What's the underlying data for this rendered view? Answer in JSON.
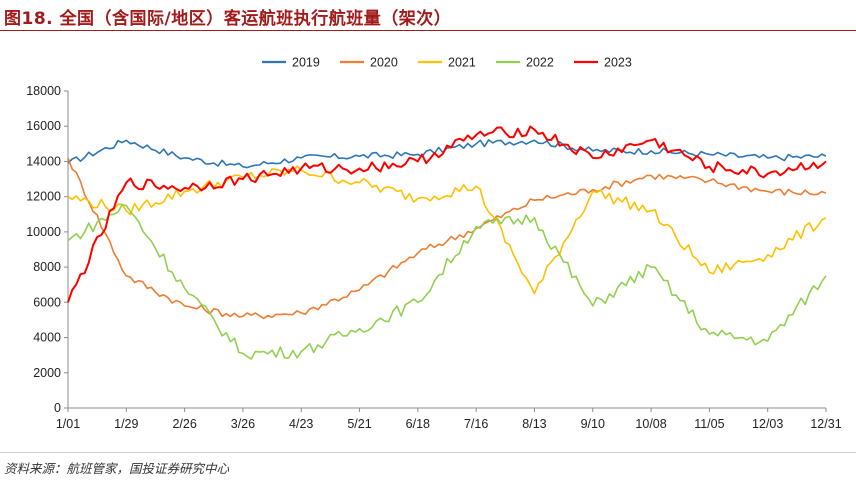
{
  "figure": {
    "title": "图18. 全国（含国际/地区）客运航班执行航班量（架次）",
    "source": "资料来源：航班管家，国投证券研究中心"
  },
  "chart_data": {
    "type": "line",
    "title": "全国（含国际/地区）客运航班执行航班量（架次）",
    "xlabel": "",
    "ylabel": "",
    "x_unit": "day of year",
    "x": [
      1,
      29,
      57,
      85,
      113,
      141,
      169,
      197,
      225,
      253,
      281,
      309,
      337,
      365
    ],
    "x_ticks": [
      "1/01",
      "1/29",
      "2/26",
      "3/26",
      "4/23",
      "5/21",
      "6/18",
      "7/16",
      "8/13",
      "9/10",
      "10/08",
      "11/05",
      "12/03",
      "12/31"
    ],
    "ylim": [
      0,
      18000
    ],
    "y_ticks": [
      0,
      2000,
      4000,
      6000,
      8000,
      10000,
      12000,
      14000,
      16000,
      18000
    ],
    "y_tick_labels": [
      "0",
      "2000",
      "4000",
      "6000",
      "8000",
      "10000",
      "12000",
      "14000",
      "16000",
      "18000"
    ],
    "legend_position": "top-center",
    "series": [
      {
        "name": "2019",
        "color": "#2e75b6",
        "values": [
          13900,
          15200,
          14200,
          13700,
          14200,
          14300,
          14400,
          15000,
          15200,
          14600,
          14600,
          14400,
          14200,
          14300
        ]
      },
      {
        "name": "2020",
        "color": "#ed7d31",
        "values": [
          14200,
          7500,
          5800,
          5200,
          5400,
          6700,
          8800,
          10200,
          11800,
          12400,
          13200,
          12900,
          12300,
          12200
        ]
      },
      {
        "name": "2021",
        "color": "#ffc000",
        "values": [
          12000,
          11200,
          12300,
          13100,
          13500,
          12800,
          11900,
          12600,
          6500,
          12300,
          11200,
          7700,
          8700,
          10800
        ]
      },
      {
        "name": "2022",
        "color": "#92d050",
        "values": [
          9500,
          11500,
          6800,
          3100,
          3200,
          4500,
          6000,
          10300,
          10800,
          5800,
          8000,
          4200,
          3800,
          7500
        ]
      },
      {
        "name": "2023",
        "color": "#ff0000",
        "values": [
          6000,
          12800,
          12500,
          13000,
          13600,
          13600,
          14000,
          15500,
          15800,
          14200,
          15200,
          13700,
          13300,
          14000
        ]
      }
    ]
  }
}
